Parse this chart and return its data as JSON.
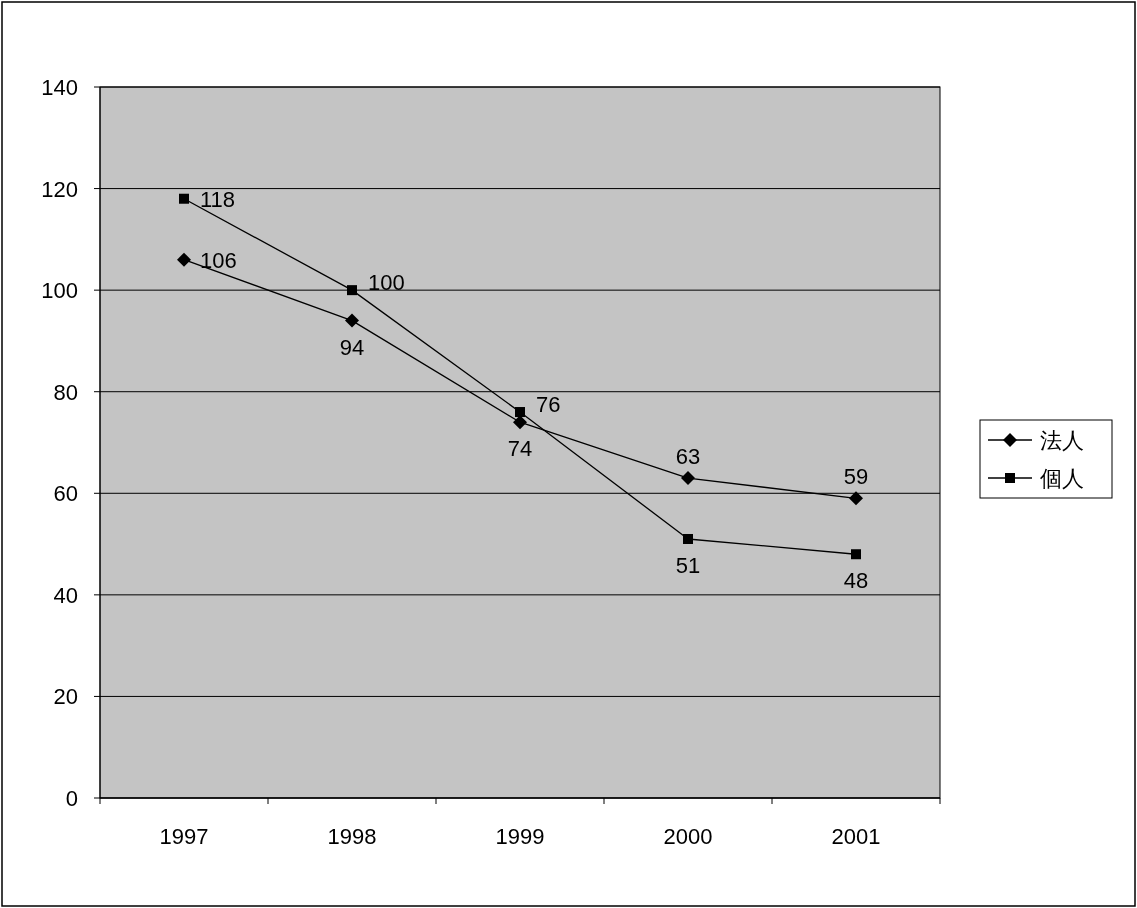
{
  "chart_data": {
    "type": "line",
    "categories": [
      "1997",
      "1998",
      "1999",
      "2000",
      "2001"
    ],
    "series": [
      {
        "name": "法人",
        "color": "#000000",
        "marker": "diamond",
        "values": [
          106,
          94,
          74,
          63,
          59
        ]
      },
      {
        "name": "個人",
        "color": "#000000",
        "marker": "square",
        "values": [
          118,
          100,
          76,
          51,
          48
        ]
      }
    ],
    "ylim": [
      0,
      140
    ],
    "yticks": [
      0,
      20,
      40,
      60,
      80,
      100,
      120,
      140
    ],
    "grid": "y",
    "legend": "right",
    "data_labels": true,
    "line_style": "solid"
  }
}
